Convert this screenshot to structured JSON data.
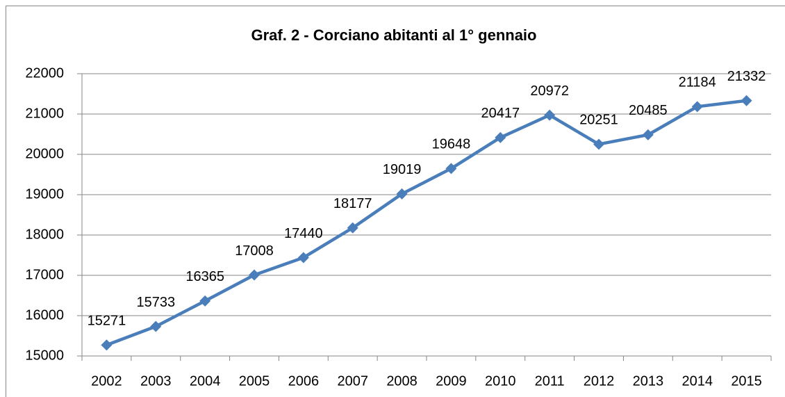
{
  "chart_data": {
    "type": "line",
    "title": "Graf. 2 - Corciano  abitanti al 1° gennaio",
    "categories": [
      "2002",
      "2003",
      "2004",
      "2005",
      "2006",
      "2007",
      "2008",
      "2009",
      "2010",
      "2011",
      "2012",
      "2013",
      "2014",
      "2015"
    ],
    "values": [
      15271,
      15733,
      16365,
      17008,
      17440,
      18177,
      19019,
      19648,
      20417,
      20972,
      20251,
      20485,
      21184,
      21332
    ],
    "color": "#4a7ebb",
    "ylim": [
      15000,
      22000
    ],
    "yticks": [
      15000,
      16000,
      17000,
      18000,
      19000,
      20000,
      21000,
      22000
    ],
    "grid": true,
    "data_labels": true
  }
}
